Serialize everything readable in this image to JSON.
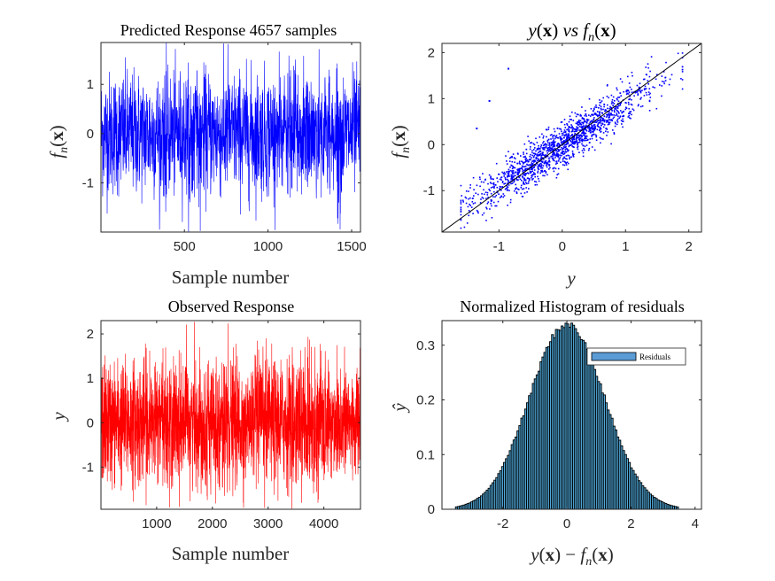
{
  "figure": {
    "width": 875,
    "height": 656,
    "background": "#ffffff"
  },
  "chart_data": [
    {
      "id": "predicted",
      "type": "line",
      "title": "Predicted Response 4657 samples",
      "xlabel": "Sample number",
      "ylabel": "f_n(x)",
      "ylabel_text": "fn(x)",
      "xlim": [
        1,
        1553
      ],
      "ylim": [
        -2,
        1.85
      ],
      "xticks": [
        500,
        1000,
        1500
      ],
      "xtick_labels": [
        "500",
        "1000",
        "1500"
      ],
      "yticks": [
        -1,
        0,
        1
      ],
      "ytick_labels": [
        "-1",
        "0",
        "1"
      ],
      "color": "#0000ff",
      "n_points": 1553,
      "series_stats": {
        "mean": 0.0,
        "std": 0.62,
        "min": -2.0,
        "max": 1.85
      }
    },
    {
      "id": "scatter",
      "type": "scatter",
      "title": "y(x) vs f_n(x)",
      "title_parts": [
        "y(",
        "x",
        ") ",
        "vs",
        " f",
        "n",
        "(",
        "x",
        ")"
      ],
      "xlabel": "y",
      "ylabel": "f_n(x)",
      "ylabel_text": "fn(x)",
      "xlim": [
        -1.9,
        2.2
      ],
      "ylim": [
        -1.9,
        2.2
      ],
      "xticks": [
        -1,
        0,
        1,
        2
      ],
      "xtick_labels": [
        "-1",
        "0",
        "1",
        "2"
      ],
      "yticks": [
        -1,
        0,
        1,
        2
      ],
      "ytick_labels": [
        "-1",
        "0",
        "1",
        "2"
      ],
      "color": "#0000ff",
      "reference_line": {
        "from": [
          -1.9,
          -1.9
        ],
        "to": [
          2.2,
          2.2
        ],
        "color": "#000000"
      },
      "n_points": 1553,
      "outliers": [
        [
          -0.85,
          1.65
        ],
        [
          -1.15,
          0.95
        ],
        [
          -1.35,
          0.35
        ]
      ]
    },
    {
      "id": "observed",
      "type": "line",
      "title": "Observed Response",
      "xlabel": "Sample number",
      "ylabel": "y",
      "xlim": [
        1,
        4657
      ],
      "ylim": [
        -1.95,
        2.3
      ],
      "xticks": [
        1000,
        2000,
        3000,
        4000
      ],
      "xtick_labels": [
        "1000",
        "2000",
        "3000",
        "4000"
      ],
      "yticks": [
        -1,
        0,
        1,
        2
      ],
      "ytick_labels": [
        "-1",
        "0",
        "1",
        "2"
      ],
      "color": "#ff0000",
      "n_points": 4657,
      "series_stats": {
        "mean": 0.0,
        "std": 0.68,
        "min": -1.95,
        "max": 2.3
      }
    },
    {
      "id": "histogram",
      "type": "bar",
      "title": "Normalized Histogram of residuals",
      "xlabel": "y(x) - f_n(x)",
      "xlabel_parts": [
        "y(",
        "x",
        ") − f",
        "n",
        "(",
        "x",
        ")"
      ],
      "ylabel": "ŷ",
      "xlim": [
        -3.9,
        4.2
      ],
      "ylim": [
        0,
        0.345
      ],
      "xticks": [
        -2,
        0,
        2,
        4
      ],
      "xtick_labels": [
        "-2",
        "0",
        "2",
        "4"
      ],
      "yticks": [
        0,
        0.1,
        0.2,
        0.3
      ],
      "ytick_labels": [
        "0",
        "0.1",
        "0.2",
        "0.3"
      ],
      "bin_width": 0.06,
      "bin_range": [
        -3.45,
        3.45
      ],
      "distribution": {
        "type": "normal",
        "mean": 0.0,
        "std": 1.17,
        "peak": 0.338
      },
      "bar_face": "#4fa8d8",
      "bar_edge": "#000000",
      "legend": {
        "label": "Residuals",
        "position": "top-right",
        "swatch": "#5b9bd5"
      }
    }
  ]
}
